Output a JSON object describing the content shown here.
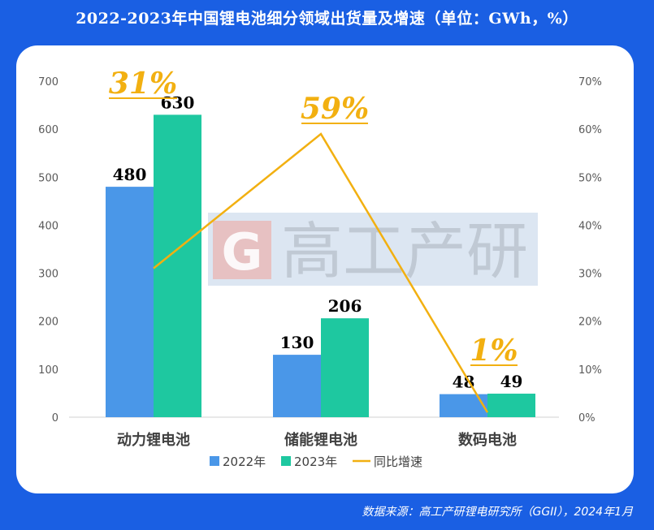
{
  "title": "2022-2023年中国锂电池细分领域出货量及增速（单位：GWh，%）",
  "source": "数据来源：高工产研锂电研究所（GGII），2024年1月",
  "watermark": "高工产研",
  "colors": {
    "frame": "#1a5fe3",
    "y2022": "#4a97e8",
    "y2023": "#1ec8a0",
    "growth": "#f2b011"
  },
  "chart_data": {
    "type": "bar",
    "categories": [
      "动力锂电池",
      "储能锂电池",
      "数码电池"
    ],
    "series": [
      {
        "name": "2022年",
        "values": [
          480,
          130,
          48
        ]
      },
      {
        "name": "2023年",
        "values": [
          630,
          206,
          49
        ]
      }
    ],
    "line": {
      "name": "同比增速",
      "values": [
        31,
        59,
        1
      ]
    },
    "growth_labels": [
      "31%",
      "59%",
      "1%"
    ],
    "left_axis": {
      "ylim": [
        0,
        700
      ],
      "ticks": [
        "0",
        "100",
        "200",
        "300",
        "400",
        "500",
        "600",
        "700"
      ]
    },
    "right_axis": {
      "ylim": [
        0,
        70
      ],
      "ticks": [
        "0%",
        "10%",
        "20%",
        "30%",
        "40%",
        "50%",
        "60%",
        "70%"
      ]
    },
    "legend": "bottom-center",
    "grid": false
  }
}
